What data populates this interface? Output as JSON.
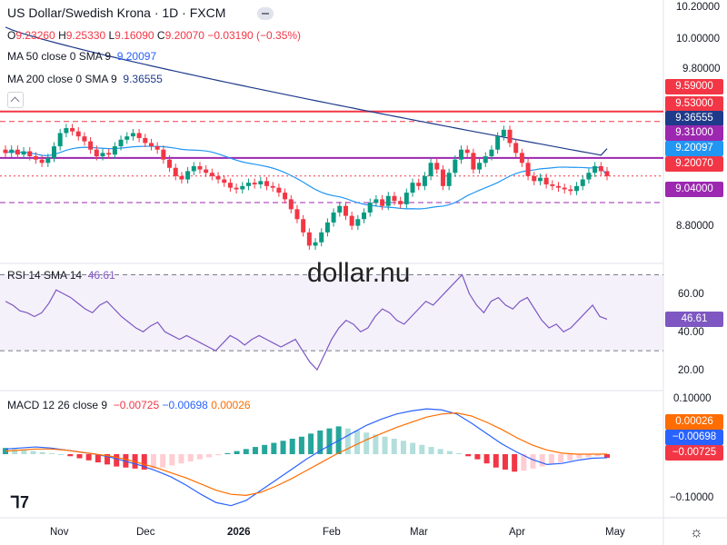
{
  "header": {
    "title": "US Dollar/Swedish Krona · 1D · FXCM",
    "ohlc": {
      "o_label": "O",
      "o_value": "9.23260",
      "h_label": "H",
      "h_value": "9.25330",
      "l_label": "L",
      "l_value": "9.16090",
      "c_label": "C",
      "c_value": "9.20070",
      "change": "−0.03190 (−0.35%)"
    },
    "ma50_label": "MA 50 close 0 SMA 9",
    "ma50_value": "9.20097",
    "ma200_label": "MA 200 close 0 SMA 9",
    "ma200_value": "9.36555"
  },
  "watermark": "dollar.nu",
  "price_axis": {
    "ticks": [
      "10.20000",
      "10.00000",
      "9.80000",
      "8.80000"
    ],
    "tags": [
      {
        "text": "9.59000",
        "color": "#f23645"
      },
      {
        "text": "9.53000",
        "color": "#f23645"
      },
      {
        "text": "9.36555",
        "color": "#1e3a8a"
      },
      {
        "text": "9.31000",
        "color": "#9c27b0"
      },
      {
        "text": "9.20097",
        "color": "#2196f3"
      },
      {
        "text": "9.20070",
        "color": "#f23645"
      },
      {
        "text": "9.04000",
        "color": "#9c27b0"
      }
    ]
  },
  "rsi": {
    "label": "RSI 14 SMA 14",
    "value": "46.61",
    "tag": "46.61",
    "ticks": [
      "60.00",
      "40.00",
      "20.00"
    ]
  },
  "macd": {
    "label": "MACD 12 26 close 9",
    "v1": "−0.00725",
    "v2": "−0.00698",
    "v3": "0.00026",
    "ticks": [
      "0.10000",
      "−0.10000"
    ],
    "tags": [
      {
        "text": "0.00026",
        "color": "#ff6d00"
      },
      {
        "text": "−0.00698",
        "color": "#2962ff"
      },
      {
        "text": "−0.00725",
        "color": "#f23645"
      }
    ]
  },
  "time_axis": [
    "Nov",
    "Dec",
    "2026",
    "Feb",
    "Mar",
    "Apr",
    "May"
  ],
  "chart_data": [
    {
      "type": "candlestick",
      "title": "US Dollar/Swedish Krona · 1D · FXCM",
      "x_range": [
        "2025-10-22",
        "2026-04-30"
      ],
      "ylim": [
        8.7,
        10.22
      ],
      "close_series": [
        9.34,
        9.36,
        9.33,
        9.35,
        9.32,
        9.3,
        9.28,
        9.31,
        9.38,
        9.46,
        9.49,
        9.47,
        9.44,
        9.41,
        9.36,
        9.32,
        9.34,
        9.33,
        9.38,
        9.42,
        9.44,
        9.46,
        9.43,
        9.4,
        9.38,
        9.36,
        9.3,
        9.25,
        9.2,
        9.18,
        9.23,
        9.26,
        9.24,
        9.22,
        9.2,
        9.18,
        9.16,
        9.13,
        9.12,
        9.14,
        9.16,
        9.15,
        9.17,
        9.14,
        9.13,
        9.1,
        9.06,
        9.0,
        8.94,
        8.86,
        8.78,
        8.8,
        8.86,
        8.92,
        8.98,
        9.02,
        8.96,
        8.9,
        8.94,
        8.98,
        9.04,
        9.06,
        9.02,
        9.08,
        9.05,
        9.03,
        9.1,
        9.16,
        9.14,
        9.2,
        9.28,
        9.24,
        9.14,
        9.22,
        9.3,
        9.36,
        9.34,
        9.24,
        9.28,
        9.32,
        9.36,
        9.44,
        9.48,
        9.4,
        9.34,
        9.28,
        9.2,
        9.17,
        9.19,
        9.15,
        9.14,
        9.13,
        9.12,
        9.11,
        9.14,
        9.18,
        9.22,
        9.26,
        9.23,
        9.2
      ],
      "horizontal_levels": [
        {
          "value": 9.59,
          "style": "solid",
          "color": "#f23645"
        },
        {
          "value": 9.53,
          "style": "dashed",
          "color": "#f23645"
        },
        {
          "value": 9.31,
          "style": "solid",
          "color": "#9c27b0"
        },
        {
          "value": 9.2007,
          "style": "dotted",
          "color": "#f23645"
        },
        {
          "value": 9.04,
          "style": "dashed",
          "color": "#9c27b0"
        }
      ],
      "ma50_last": 9.20097,
      "ma200_last": 9.36555
    },
    {
      "type": "line",
      "title": "RSI 14 SMA 14",
      "ylim": [
        10,
        75
      ],
      "bands": [
        70,
        30
      ],
      "values": [
        56,
        54,
        51,
        50,
        48,
        50,
        55,
        62,
        60,
        58,
        55,
        52,
        50,
        54,
        56,
        52,
        48,
        45,
        42,
        40,
        43,
        45,
        40,
        38,
        36,
        38,
        36,
        34,
        32,
        30,
        34,
        38,
        36,
        33,
        36,
        38,
        36,
        34,
        32,
        34,
        36,
        30,
        24,
        20,
        28,
        36,
        42,
        46,
        44,
        40,
        42,
        48,
        52,
        50,
        46,
        44,
        48,
        52,
        56,
        54,
        58,
        62,
        66,
        70,
        60,
        54,
        50,
        56,
        58,
        54,
        52,
        56,
        58,
        52,
        46,
        42,
        44,
        40,
        42,
        46,
        50,
        54,
        48,
        46.61
      ]
    },
    {
      "type": "bar+line",
      "title": "MACD 12 26 close 9",
      "ylim": [
        -0.12,
        0.12
      ],
      "histogram": [
        0.012,
        0.01,
        0.008,
        0.006,
        0.004,
        0.002,
        0.0,
        -0.004,
        -0.008,
        -0.012,
        -0.016,
        -0.02,
        -0.024,
        -0.026,
        -0.028,
        -0.03,
        -0.028,
        -0.026,
        -0.022,
        -0.018,
        -0.014,
        -0.01,
        -0.006,
        -0.002,
        0.002,
        0.006,
        0.01,
        0.014,
        0.018,
        0.022,
        0.026,
        0.03,
        0.034,
        0.04,
        0.046,
        0.05,
        0.054,
        0.05,
        0.046,
        0.042,
        0.038,
        0.034,
        0.03,
        0.026,
        0.022,
        0.018,
        0.014,
        0.01,
        0.006,
        0.002,
        -0.004,
        -0.01,
        -0.018,
        -0.026,
        -0.03,
        -0.034,
        -0.032,
        -0.028,
        -0.024,
        -0.02,
        -0.016,
        -0.012,
        -0.008,
        -0.006,
        -0.004,
        -0.00725
      ],
      "macd_line": [
        0.01,
        0.012,
        0.014,
        0.012,
        0.008,
        0.004,
        0.0,
        -0.006,
        -0.014,
        -0.022,
        -0.032,
        -0.044,
        -0.06,
        -0.078,
        -0.094,
        -0.1,
        -0.09,
        -0.07,
        -0.05,
        -0.03,
        -0.01,
        0.008,
        0.024,
        0.04,
        0.056,
        0.068,
        0.078,
        0.084,
        0.088,
        0.086,
        0.078,
        0.06,
        0.04,
        0.02,
        0.004,
        -0.01,
        -0.02,
        -0.018,
        -0.012,
        -0.008,
        -0.00698
      ],
      "signal_line": [
        0.006,
        0.008,
        0.01,
        0.01,
        0.008,
        0.004,
        0.0,
        -0.004,
        -0.01,
        -0.018,
        -0.026,
        -0.036,
        -0.046,
        -0.058,
        -0.07,
        -0.078,
        -0.08,
        -0.074,
        -0.062,
        -0.048,
        -0.032,
        -0.016,
        0.0,
        0.014,
        0.028,
        0.04,
        0.052,
        0.062,
        0.072,
        0.078,
        0.08,
        0.074,
        0.062,
        0.048,
        0.032,
        0.018,
        0.008,
        0.002,
        0.0,
        0.0,
        0.00026
      ]
    }
  ]
}
